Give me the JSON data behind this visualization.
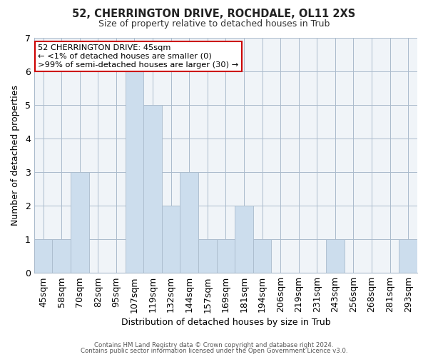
{
  "title1": "52, CHERRINGTON DRIVE, ROCHDALE, OL11 2XS",
  "title2": "Size of property relative to detached houses in Trub",
  "xlabel": "Distribution of detached houses by size in Trub",
  "ylabel": "Number of detached properties",
  "bar_labels": [
    "45sqm",
    "58sqm",
    "70sqm",
    "82sqm",
    "95sqm",
    "107sqm",
    "119sqm",
    "132sqm",
    "144sqm",
    "157sqm",
    "169sqm",
    "181sqm",
    "194sqm",
    "206sqm",
    "219sqm",
    "231sqm",
    "243sqm",
    "256sqm",
    "268sqm",
    "281sqm",
    "293sqm"
  ],
  "bar_values": [
    1,
    1,
    3,
    0,
    0,
    6,
    5,
    2,
    3,
    1,
    1,
    2,
    1,
    0,
    0,
    0,
    1,
    0,
    0,
    0,
    1
  ],
  "bar_color": "#ccdded",
  "bar_edge_color": "#aabbcc",
  "grid_color": "#ccddee",
  "annotation_title": "52 CHERRINGTON DRIVE: 45sqm",
  "annotation_line1": "← <1% of detached houses are smaller (0)",
  "annotation_line2": ">99% of semi-detached houses are larger (30) →",
  "annotation_box_color": "#ffffff",
  "annotation_box_edge": "#cc0000",
  "ylim": [
    0,
    7
  ],
  "yticks": [
    0,
    1,
    2,
    3,
    4,
    5,
    6,
    7
  ],
  "footer1": "Contains HM Land Registry data © Crown copyright and database right 2024.",
  "footer2": "Contains public sector information licensed under the Open Government Licence v3.0."
}
